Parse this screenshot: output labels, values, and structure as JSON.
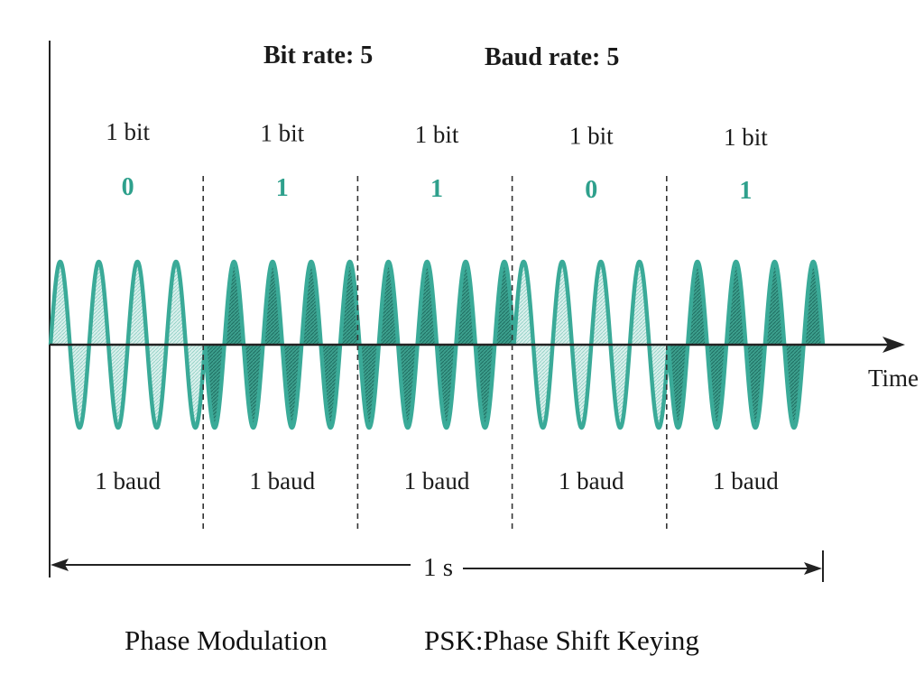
{
  "header": {
    "bit_rate": "Bit rate: 5",
    "baud_rate": "Baud rate: 5"
  },
  "bits": [
    {
      "label": "1 bit",
      "value": "0",
      "baud": "1 baud"
    },
    {
      "label": "1 bit",
      "value": "1",
      "baud": "1 baud"
    },
    {
      "label": "1 bit",
      "value": "1",
      "baud": "1 baud"
    },
    {
      "label": "1 bit",
      "value": "0",
      "baud": "1 baud"
    },
    {
      "label": "1 bit",
      "value": "1",
      "baud": "1 baud"
    }
  ],
  "axis": {
    "time_label": "Time",
    "duration_label": "1 s"
  },
  "captions": {
    "left": "Phase Modulation",
    "right": "PSK:Phase Shift Keying"
  },
  "colors": {
    "wave": "#3aaa98",
    "bit_value": "#2ea08c",
    "fill_phase0": "#bfe6df",
    "fill_phase1": "#2f9b88",
    "ink": "#1a1a1a"
  },
  "signal": {
    "cycles_per_bit": 4
  }
}
